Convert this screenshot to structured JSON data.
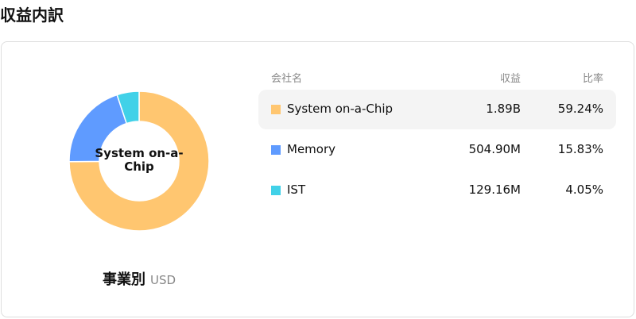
{
  "title": "収益内訳",
  "chart_data": {
    "type": "pie",
    "variant": "donut",
    "center_label": "System on-a-Chip",
    "categories": [
      "System on-a-Chip",
      "Memory",
      "IST"
    ],
    "values": [
      59.24,
      15.83,
      4.05
    ],
    "colors": [
      "#FFC670",
      "#5F9BFF",
      "#41D1E8"
    ]
  },
  "caption": {
    "label": "事業別",
    "unit": "USD"
  },
  "table": {
    "headers": {
      "name": "会社名",
      "revenue": "収益",
      "ratio": "比率"
    },
    "rows": [
      {
        "name": "System on-a-Chip",
        "revenue": "1.89B",
        "ratio": "59.24%",
        "color": "#FFC670"
      },
      {
        "name": "Memory",
        "revenue": "504.90M",
        "ratio": "15.83%",
        "color": "#5F9BFF"
      },
      {
        "name": "IST",
        "revenue": "129.16M",
        "ratio": "4.05%",
        "color": "#41D1E8"
      }
    ]
  }
}
